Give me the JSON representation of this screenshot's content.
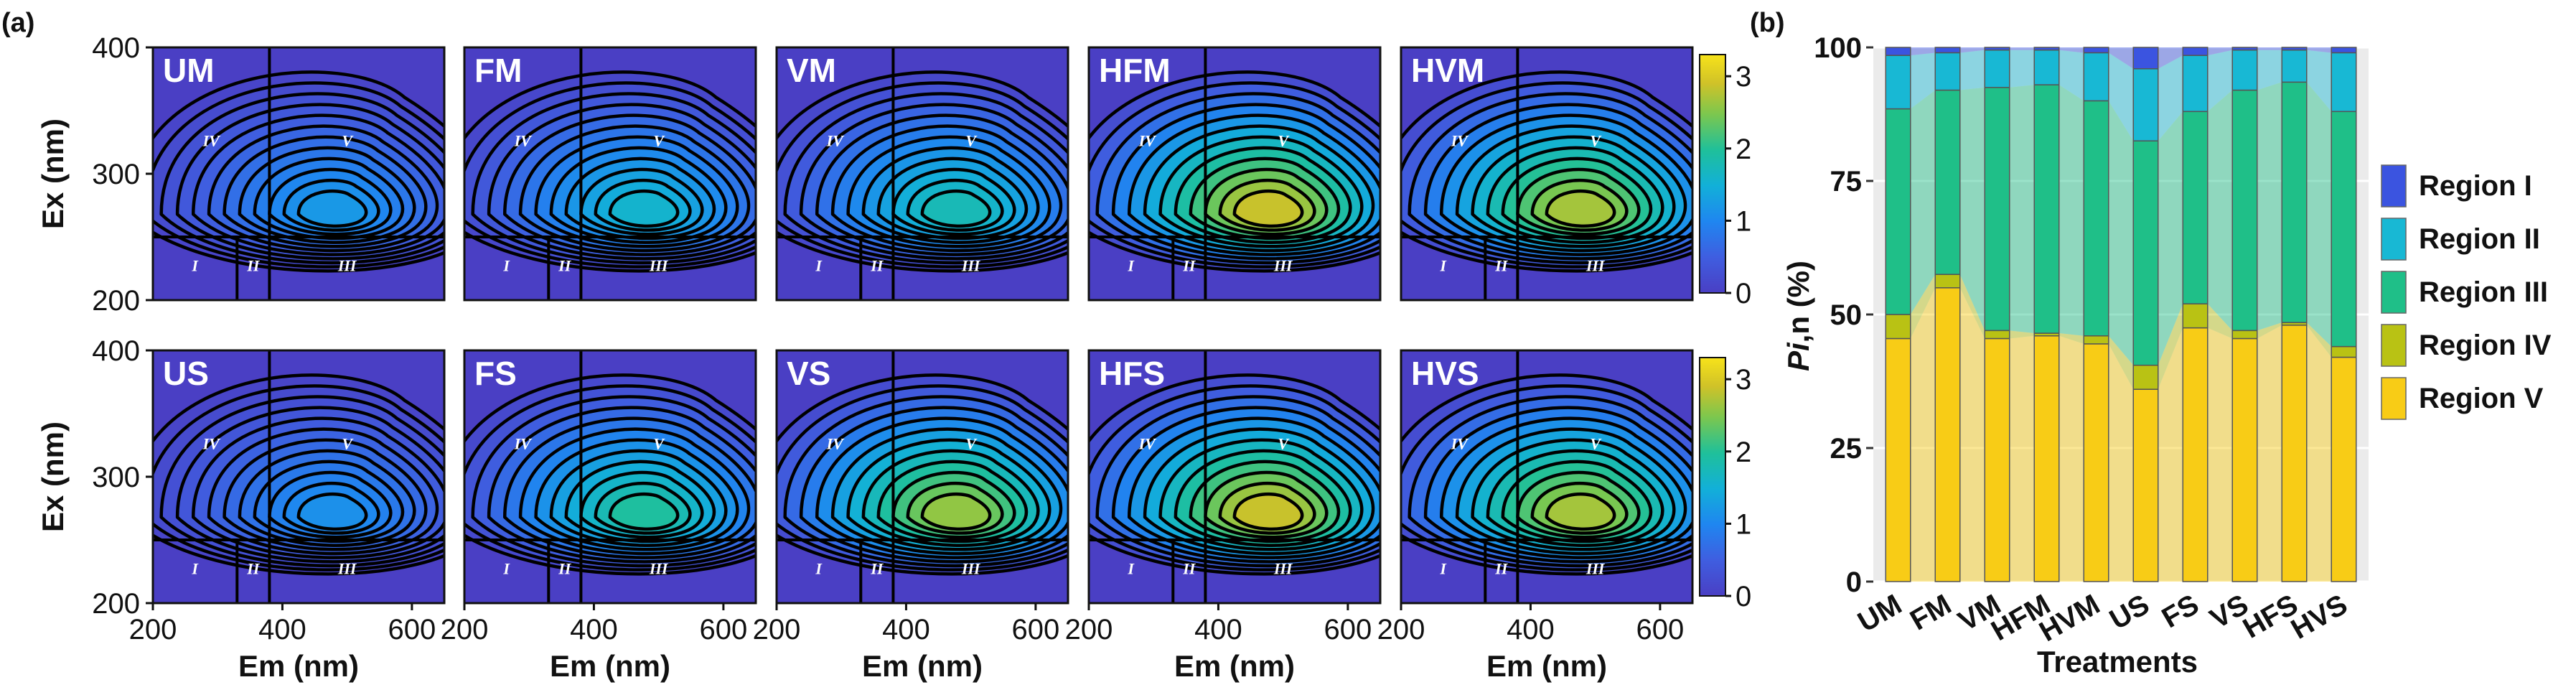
{
  "panel_a": {
    "tag": "(a)",
    "rows": [
      {
        "samples": [
          "UM",
          "FM",
          "VM",
          "HFM",
          "HVM"
        ],
        "peaks": [
          1.3,
          1.7,
          1.9,
          3.1,
          2.9
        ]
      },
      {
        "samples": [
          "US",
          "FS",
          "VS",
          "HFS",
          "HVS"
        ],
        "peaks": [
          1.2,
          2.1,
          2.8,
          3.1,
          2.9
        ]
      }
    ],
    "region_labels": [
      "I",
      "II",
      "III",
      "IV",
      "V"
    ],
    "x_axis": {
      "label": "Em (nm)",
      "ticks": [
        "200",
        "400",
        "600"
      ],
      "range": [
        200,
        650
      ]
    },
    "y_axis": {
      "label": "Ex (nm)",
      "ticks": [
        "200",
        "300",
        "400"
      ],
      "range": [
        200,
        400
      ]
    },
    "colorbar": {
      "ticks": [
        "0",
        "1",
        "2",
        "3"
      ],
      "range": [
        0,
        3.3
      ]
    },
    "colors": {
      "background": "#4a3fc4",
      "contour": "#000000",
      "region_line": "#000000"
    }
  },
  "panel_b": {
    "tag": "(b)",
    "ylabel": "Pi,n (%)",
    "ylabel_italic": "Pi",
    "ylabel_rest": ",n (%)",
    "xlabel": "Treatments",
    "y_ticks": [
      "0",
      "25",
      "50",
      "75",
      "100"
    ],
    "legend": [
      {
        "label": "Region I",
        "color": "#3b54e0"
      },
      {
        "label": "Region II",
        "color": "#18b8d4"
      },
      {
        "label": "Region III",
        "color": "#1fbf88"
      },
      {
        "label": "Region IV",
        "color": "#b9c214"
      },
      {
        "label": "Region V",
        "color": "#f8cc16"
      }
    ]
  },
  "chart_data": {
    "type": "bar",
    "stacked": true,
    "title": "",
    "xlabel": "Treatments",
    "ylabel": "Pi,n (%)",
    "ylim": [
      0,
      100
    ],
    "categories": [
      "UM",
      "FM",
      "VM",
      "HFM",
      "HVM",
      "US",
      "FS",
      "VS",
      "HFS",
      "HVS"
    ],
    "series": [
      {
        "name": "Region V",
        "values": [
          45.5,
          55.0,
          45.5,
          46.0,
          44.5,
          36.0,
          47.5,
          45.5,
          48.0,
          42.0
        ]
      },
      {
        "name": "Region IV",
        "values": [
          4.5,
          2.5,
          1.5,
          0.5,
          1.5,
          4.5,
          4.5,
          1.5,
          0.5,
          2.0
        ]
      },
      {
        "name": "Region III",
        "values": [
          38.5,
          34.5,
          45.5,
          46.5,
          44.0,
          42.0,
          36.0,
          45.0,
          45.0,
          44.0
        ]
      },
      {
        "name": "Region II",
        "values": [
          10.0,
          7.0,
          7.0,
          6.5,
          9.0,
          13.5,
          10.5,
          7.5,
          6.0,
          11.0
        ]
      },
      {
        "name": "Region I",
        "values": [
          1.5,
          1.0,
          0.5,
          0.5,
          1.0,
          4.0,
          1.5,
          0.5,
          0.5,
          1.0
        ]
      }
    ]
  }
}
